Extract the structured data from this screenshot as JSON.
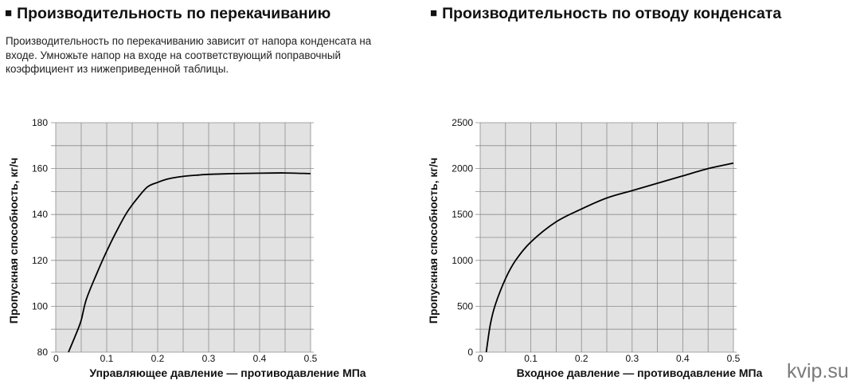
{
  "sections": {
    "left_title": "Производительность по перекачиванию",
    "right_title": "Производительность по отводу конденсата",
    "left_description": "Производительность по перекачиванию зависит от напора конденсата на входе. Умножьте напор на входе на соответствующий поправочный коэффициент из нижеприведенной таблицы."
  },
  "watermark": "kvip.su",
  "colors": {
    "plot_bg": "#e2e2e2",
    "grid": "#8c8c8c",
    "curve": "#000000"
  },
  "chart_data": [
    {
      "type": "line",
      "title": "",
      "xlabel": "Управляющее давление — противодавление МПа",
      "ylabel": "Пропускная способность, кг/ч",
      "xlim": [
        0,
        0.5
      ],
      "ylim": [
        80,
        180
      ],
      "x_ticks": [
        0,
        0.1,
        0.2,
        0.3,
        0.4,
        0.5
      ],
      "x_tick_labels": [
        "0",
        "0.1",
        "0.2",
        "0.3",
        "0.4",
        "0.5"
      ],
      "y_ticks": [
        80,
        100,
        120,
        140,
        160,
        180
      ],
      "y_tick_labels": [
        "80",
        "100",
        "120",
        "140",
        "160",
        "180"
      ],
      "grid": true,
      "series": [
        {
          "x": [
            0.025,
            0.04,
            0.05,
            0.06,
            0.08,
            0.1,
            0.12,
            0.14,
            0.16,
            0.18,
            0.2,
            0.22,
            0.25,
            0.28,
            0.3,
            0.35,
            0.4,
            0.45,
            0.5
          ],
          "y": [
            80,
            88,
            94,
            103,
            114,
            124,
            133,
            141,
            147,
            152,
            154,
            155.5,
            156.6,
            157.2,
            157.5,
            157.8,
            158,
            158.1,
            157.8
          ]
        }
      ]
    },
    {
      "type": "line",
      "title": "",
      "xlabel": "Входное давление — противодавление МПа",
      "ylabel": "Пропускная способность, кг/ч",
      "xlim": [
        0,
        0.5
      ],
      "ylim": [
        0,
        2500
      ],
      "x_ticks": [
        0,
        0.1,
        0.2,
        0.3,
        0.4,
        0.5
      ],
      "x_tick_labels": [
        "0",
        "0.1",
        "0.2",
        "0.3",
        "0.4",
        "0.5"
      ],
      "y_ticks": [
        0,
        500,
        1000,
        1500,
        2000,
        2500
      ],
      "y_tick_labels": [
        "0",
        "500",
        "1000",
        "1500",
        "2000",
        "2500"
      ],
      "grid": true,
      "series": [
        {
          "x": [
            0.012,
            0.02,
            0.03,
            0.05,
            0.07,
            0.1,
            0.15,
            0.2,
            0.25,
            0.3,
            0.35,
            0.4,
            0.45,
            0.5
          ],
          "y": [
            0,
            300,
            520,
            800,
            1000,
            1200,
            1420,
            1560,
            1680,
            1760,
            1840,
            1920,
            2000,
            2060
          ]
        }
      ]
    }
  ]
}
